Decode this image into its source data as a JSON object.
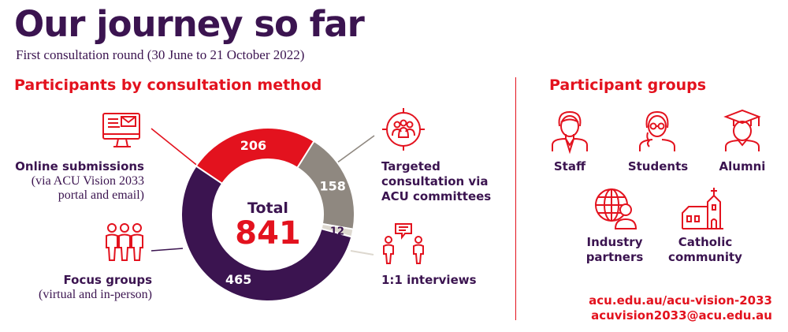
{
  "header": {
    "title": "Our journey so far",
    "subtitle": "First consultation round (30 June to 21 October 2022)"
  },
  "left_section": {
    "heading": "Participants by consultation method",
    "total_label": "Total",
    "total_value": "841",
    "methods": {
      "online": {
        "title": "Online submissions",
        "detail_line1": "(via ACU Vision 2033",
        "detail_line2": "portal and email)"
      },
      "focus": {
        "title": "Focus groups",
        "detail": "(virtual and in-person)"
      },
      "targeted": {
        "line1": "Targeted",
        "line2": "consultation via",
        "line3": "ACU committees"
      },
      "interviews": {
        "title": "1:1 interviews"
      }
    }
  },
  "right_section": {
    "heading": "Participant groups",
    "groups": {
      "staff": "Staff",
      "students": "Students",
      "alumni": "Alumni",
      "industry_line1": "Industry",
      "industry_line2": "partners",
      "catholic_line1": "Catholic",
      "catholic_line2": "community"
    },
    "contact": {
      "url": "acu.edu.au/acu-vision-2033",
      "email": "acuvision2033@acu.edu.au"
    }
  },
  "colors": {
    "purple": "#3b1450",
    "red": "#e3121e",
    "grey": "#8f8880",
    "light": "#ddd8cf"
  },
  "chart_data": {
    "type": "pie",
    "donut": true,
    "title": "Participants by consultation method",
    "total": 841,
    "categories": [
      "Online submissions",
      "Targeted consultation via ACU committees",
      "1:1 interviews",
      "Focus groups"
    ],
    "values": [
      206,
      158,
      12,
      465
    ],
    "colors": [
      "#e3121e",
      "#8f8880",
      "#ddd8cf",
      "#3b1450"
    ],
    "value_labels": [
      "206",
      "158",
      "12",
      "465"
    ]
  }
}
